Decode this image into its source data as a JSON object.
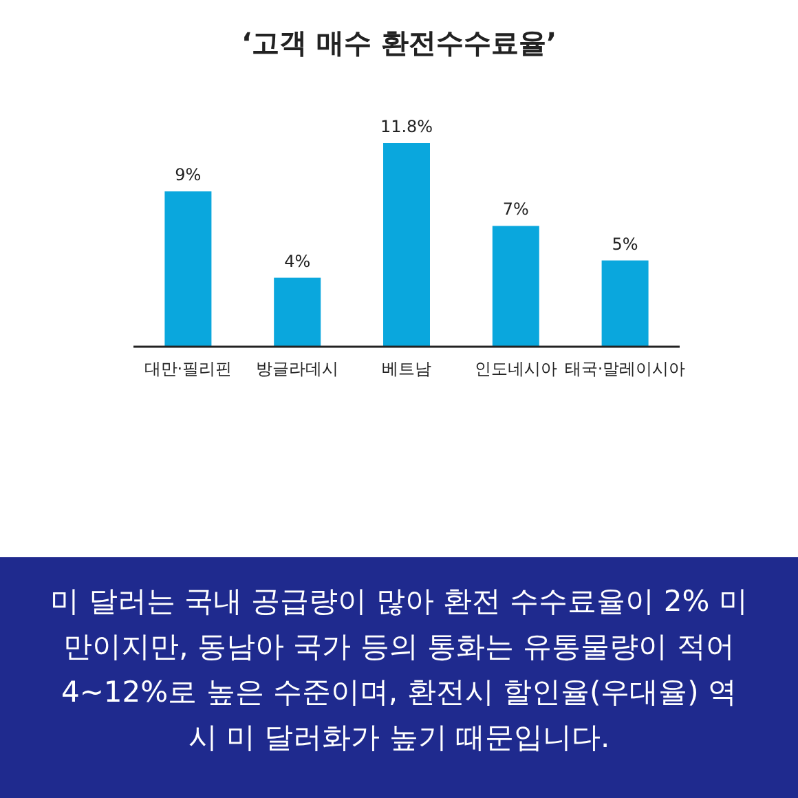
{
  "chart_data": {
    "type": "bar",
    "title": "‘고객 매수 환전수수료율’",
    "categories": [
      "대만·필리핀",
      "방글라데시",
      "베트남",
      "인도네시아",
      "태국·말레이시아"
    ],
    "values": [
      9,
      4,
      11.8,
      7,
      5
    ],
    "value_labels": [
      "9%",
      "4%",
      "11.8%",
      "7%",
      "5%"
    ],
    "color": "#0aa7dd",
    "annotations": [
      "미 달러는 국내 공급량이 많아 환전 수수료율이 2% 미만이지만, 동남아 국가 등의 통화는 유통물량이 적어 4~12%로 높은 수준이며, 환전시 할인율(우대율) 역시 미 달러화가 높기 때문입니다."
    ]
  }
}
